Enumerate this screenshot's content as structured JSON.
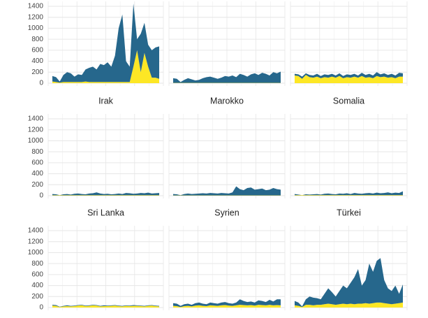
{
  "chart_data": [
    {
      "type": "area",
      "ylim": [
        0,
        1400
      ],
      "yticks": [
        0,
        200,
        400,
        600,
        800,
        1000,
        1200,
        1400
      ],
      "grid": true,
      "series": [
        {
          "color": "#fde725",
          "values": [
            30,
            20,
            10,
            20,
            20,
            20,
            20,
            20,
            20,
            30,
            20,
            20,
            20,
            20,
            20,
            20,
            20,
            20,
            20,
            20,
            20,
            20,
            300,
            600,
            200,
            550,
            300,
            100,
            100,
            80
          ]
        },
        {
          "color": "#26678c",
          "values": [
            100,
            90,
            20,
            130,
            180,
            160,
            100,
            140,
            130,
            220,
            260,
            280,
            230,
            330,
            310,
            360,
            280,
            480,
            980,
            1230,
            380,
            280,
            1150,
            200,
            700,
            550,
            400,
            500,
            550,
            590
          ]
        }
      ]
    },
    {
      "type": "area",
      "ylim": [
        0,
        1400
      ],
      "yticks": [
        0,
        200,
        400,
        600,
        800,
        1000,
        1200,
        1400
      ],
      "grid": true,
      "series": [
        {
          "color": "#fde725",
          "values": [
            5,
            5,
            5,
            5,
            5,
            5,
            5,
            5,
            5,
            5,
            5,
            5,
            5,
            5,
            5,
            5,
            5,
            5,
            5,
            5,
            5,
            5,
            5,
            5,
            5,
            5,
            5,
            5,
            5,
            5
          ]
        },
        {
          "color": "#26678c",
          "values": [
            85,
            75,
            15,
            55,
            85,
            65,
            45,
            55,
            85,
            105,
            115,
            95,
            75,
            95,
            125,
            115,
            135,
            105,
            165,
            145,
            115,
            155,
            175,
            145,
            185,
            165,
            135,
            195,
            175,
            205
          ]
        }
      ]
    },
    {
      "type": "area",
      "ylim": [
        0,
        1400
      ],
      "yticks": [
        0,
        200,
        400,
        600,
        800,
        1000,
        1200,
        1400
      ],
      "grid": true,
      "series": [
        {
          "color": "#fde725",
          "values": [
            140,
            130,
            80,
            150,
            110,
            100,
            120,
            90,
            110,
            100,
            120,
            100,
            130,
            90,
            110,
            100,
            120,
            100,
            130,
            100,
            110,
            90,
            130,
            110,
            120,
            100,
            110,
            90,
            120,
            120
          ]
        },
        {
          "color": "#26678c",
          "values": [
            30,
            30,
            40,
            30,
            40,
            40,
            50,
            40,
            50,
            50,
            50,
            40,
            50,
            40,
            50,
            50,
            50,
            40,
            60,
            50,
            60,
            50,
            70,
            50,
            60,
            50,
            60,
            50,
            70,
            60
          ]
        }
      ]
    },
    {
      "type": "area",
      "title": "Irak",
      "ylim": [
        0,
        1400
      ],
      "yticks": [
        0,
        200,
        400,
        600,
        800,
        1000,
        1200,
        1400
      ],
      "grid": true,
      "series": [
        {
          "color": "#fde725",
          "values": [
            8,
            8,
            8,
            8,
            8,
            8,
            8,
            8,
            8,
            8,
            8,
            8,
            8,
            8,
            8,
            8,
            8,
            8,
            8,
            8,
            8,
            8,
            8,
            8,
            8,
            8,
            8,
            8,
            8,
            8
          ]
        },
        {
          "color": "#26678c",
          "values": [
            22,
            17,
            2,
            17,
            22,
            12,
            27,
            32,
            22,
            17,
            32,
            37,
            52,
            32,
            22,
            27,
            17,
            22,
            32,
            22,
            42,
            37,
            27,
            32,
            42,
            37,
            47,
            32,
            37,
            42
          ]
        }
      ]
    },
    {
      "type": "area",
      "title": "Marokko",
      "ylim": [
        0,
        1400
      ],
      "yticks": [
        0,
        200,
        400,
        600,
        800,
        1000,
        1200,
        1400
      ],
      "grid": true,
      "series": [
        {
          "color": "#fde725",
          "values": [
            5,
            5,
            5,
            5,
            5,
            5,
            5,
            5,
            5,
            5,
            5,
            5,
            5,
            5,
            5,
            5,
            5,
            5,
            5,
            5,
            5,
            5,
            5,
            5,
            5,
            5,
            5,
            5,
            5,
            5
          ]
        },
        {
          "color": "#26678c",
          "values": [
            25,
            20,
            5,
            25,
            35,
            25,
            30,
            35,
            40,
            35,
            45,
            40,
            35,
            45,
            40,
            35,
            55,
            165,
            115,
            95,
            135,
            145,
            105,
            115,
            125,
            95,
            105,
            135,
            115,
            105
          ]
        }
      ]
    },
    {
      "type": "area",
      "title": "Somalia",
      "ylim": [
        0,
        1400
      ],
      "yticks": [
        0,
        200,
        400,
        600,
        800,
        1000,
        1200,
        1400
      ],
      "grid": true,
      "series": [
        {
          "color": "#fde725",
          "values": [
            10,
            10,
            10,
            10,
            10,
            10,
            10,
            10,
            10,
            10,
            10,
            10,
            10,
            10,
            10,
            10,
            10,
            10,
            10,
            10,
            10,
            10,
            10,
            10,
            10,
            10,
            10,
            10,
            10,
            10
          ]
        },
        {
          "color": "#26678c",
          "values": [
            20,
            10,
            0,
            15,
            10,
            15,
            20,
            10,
            25,
            30,
            20,
            15,
            30,
            25,
            35,
            20,
            40,
            30,
            25,
            35,
            40,
            30,
            45,
            35,
            40,
            50,
            35,
            45,
            40,
            70
          ]
        }
      ]
    },
    {
      "type": "area",
      "title": "Sri Lanka",
      "ylim": [
        0,
        1400
      ],
      "yticks": [
        0,
        200,
        400,
        600,
        800,
        1000,
        1200,
        1400
      ],
      "grid": true,
      "series": [
        {
          "color": "#fde725",
          "values": [
            35,
            30,
            10,
            20,
            25,
            20,
            25,
            35,
            40,
            25,
            30,
            40,
            35,
            20,
            25,
            25,
            30,
            35,
            25,
            20,
            30,
            25,
            30,
            30,
            25,
            20,
            30,
            35,
            25,
            20
          ]
        },
        {
          "color": "#26678c",
          "values": [
            15,
            15,
            5,
            10,
            15,
            10,
            10,
            10,
            10,
            10,
            10,
            10,
            10,
            10,
            15,
            10,
            10,
            10,
            10,
            10,
            10,
            10,
            15,
            10,
            10,
            10,
            10,
            10,
            10,
            10
          ]
        }
      ]
    },
    {
      "type": "area",
      "title": "Syrien",
      "ylim": [
        0,
        1400
      ],
      "yticks": [
        0,
        200,
        400,
        600,
        800,
        1000,
        1200,
        1400
      ],
      "grid": true,
      "series": [
        {
          "color": "#fde725",
          "values": [
            30,
            25,
            10,
            25,
            30,
            20,
            35,
            40,
            30,
            25,
            40,
            35,
            30,
            40,
            45,
            35,
            30,
            40,
            50,
            45,
            40,
            45,
            35,
            50,
            45,
            40,
            50,
            40,
            45,
            40
          ]
        },
        {
          "color": "#26678c",
          "values": [
            50,
            45,
            20,
            35,
            40,
            30,
            45,
            50,
            40,
            35,
            50,
            45,
            40,
            50,
            55,
            45,
            40,
            50,
            100,
            75,
            60,
            65,
            55,
            80,
            75,
            60,
            90,
            70,
            105,
            110
          ]
        }
      ]
    },
    {
      "type": "area",
      "title": "Türkei",
      "ylim": [
        0,
        1400
      ],
      "yticks": [
        0,
        200,
        400,
        600,
        800,
        1000,
        1200,
        1400
      ],
      "grid": true,
      "series": [
        {
          "color": "#fde725",
          "values": [
            40,
            30,
            10,
            50,
            50,
            40,
            50,
            50,
            60,
            70,
            60,
            50,
            60,
            70,
            60,
            70,
            60,
            70,
            70,
            80,
            70,
            80,
            90,
            90,
            80,
            70,
            60,
            70,
            80,
            90
          ]
        },
        {
          "color": "#26678c",
          "values": [
            80,
            60,
            10,
            100,
            150,
            140,
            120,
            100,
            190,
            280,
            220,
            150,
            240,
            330,
            290,
            380,
            490,
            630,
            330,
            420,
            730,
            570,
            760,
            810,
            420,
            280,
            240,
            330,
            170,
            330
          ]
        }
      ]
    }
  ]
}
